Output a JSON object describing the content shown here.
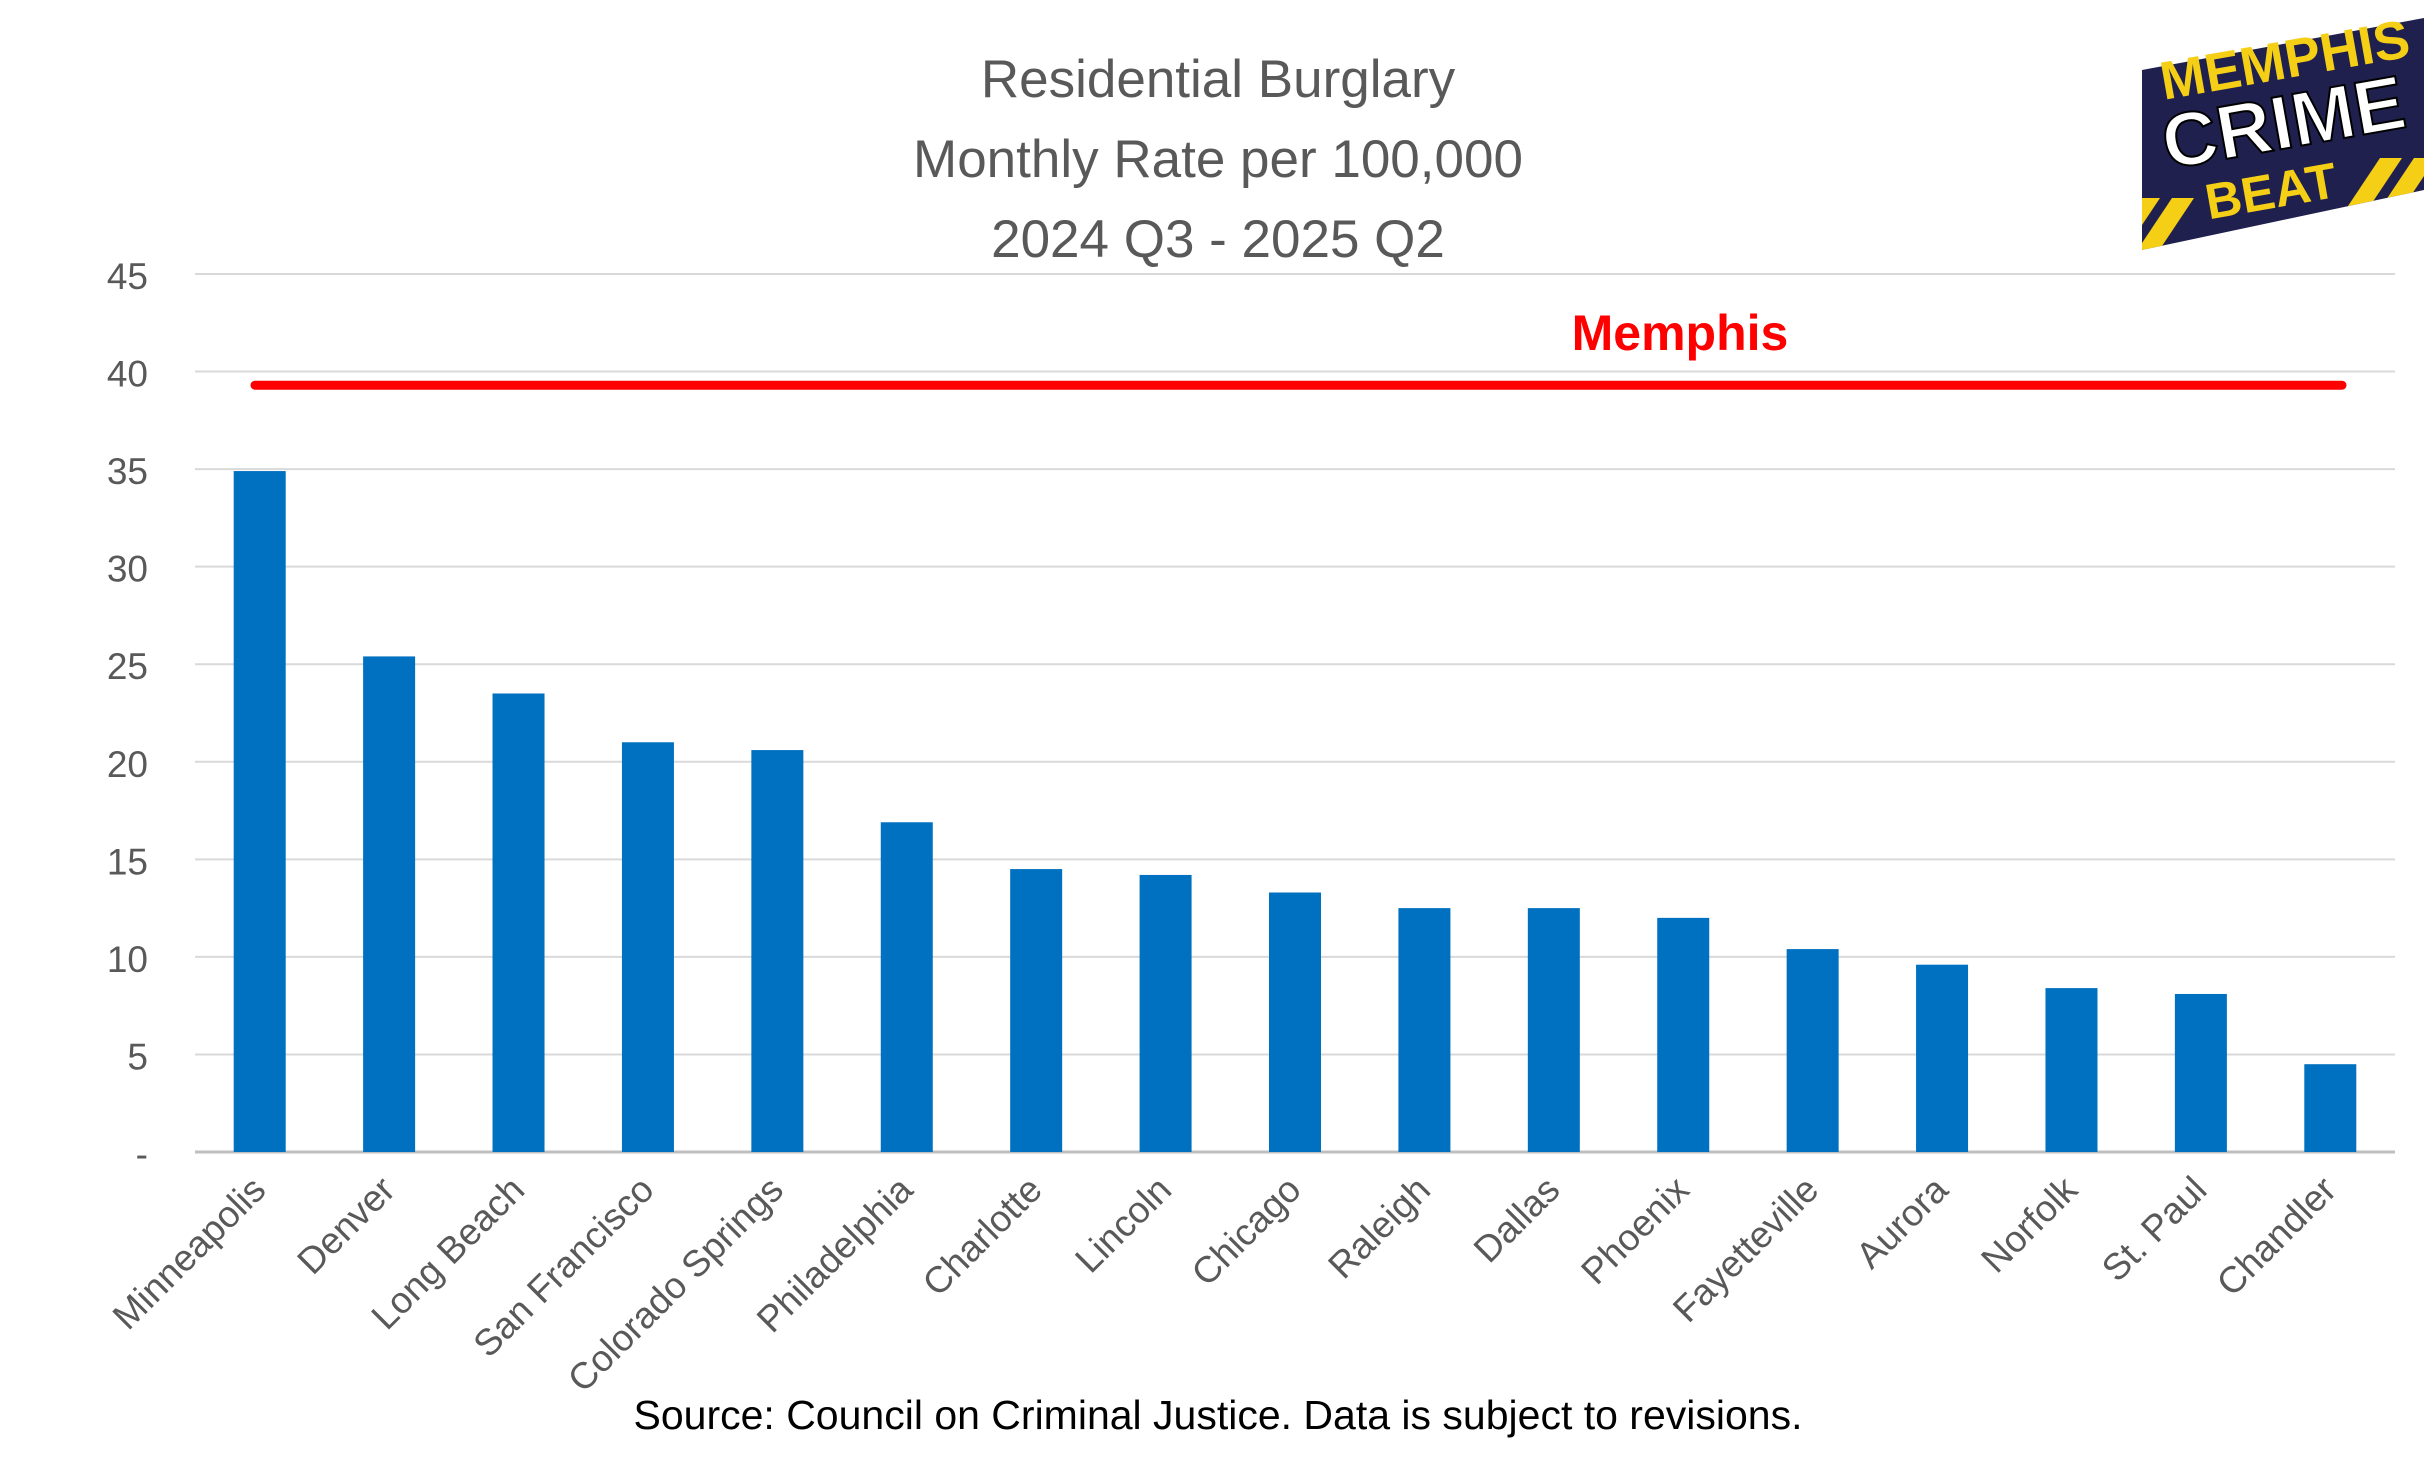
{
  "title_lines": [
    "Residential Burglary",
    "Monthly Rate per 100,000",
    "2024 Q3 - 2025 Q2"
  ],
  "source": "Source: Council on Criminal Justice.  Data is subject to revisions.",
  "logo": {
    "line1": "MEMPHIS",
    "line2": "CRIME",
    "line3": "BEAT",
    "colors": {
      "navy": "#20204e",
      "yellow": "#f5cf16"
    }
  },
  "chart_data": {
    "type": "bar",
    "title": "Residential Burglary Monthly Rate per 100,000 2024 Q3 - 2025 Q2",
    "categories": [
      "Minneapolis",
      "Denver",
      "Long Beach",
      "San Francisco",
      "Colorado Springs",
      "Philadelphia",
      "Charlotte",
      "Lincoln",
      "Chicago",
      "Raleigh",
      "Dallas",
      "Phoenix",
      "Fayetteville",
      "Aurora",
      "Norfolk",
      "St. Paul",
      "Chandler"
    ],
    "values": [
      34.9,
      25.4,
      23.5,
      21.0,
      20.6,
      16.9,
      14.5,
      14.2,
      13.3,
      12.5,
      12.5,
      12.0,
      10.4,
      9.6,
      8.4,
      8.1,
      4.5
    ],
    "ylim": [
      0,
      45
    ],
    "yticks": [
      0,
      5,
      10,
      15,
      20,
      25,
      30,
      35,
      40,
      45
    ],
    "ytick_labels": [
      "-",
      "5",
      "10",
      "15",
      "20",
      "25",
      "30",
      "35",
      "40",
      "45"
    ],
    "reference_line": {
      "label": "Memphis",
      "value": 39.3,
      "color": "#ff0000"
    },
    "bar_color": "#0070c0",
    "grid": true,
    "legend": "none"
  }
}
